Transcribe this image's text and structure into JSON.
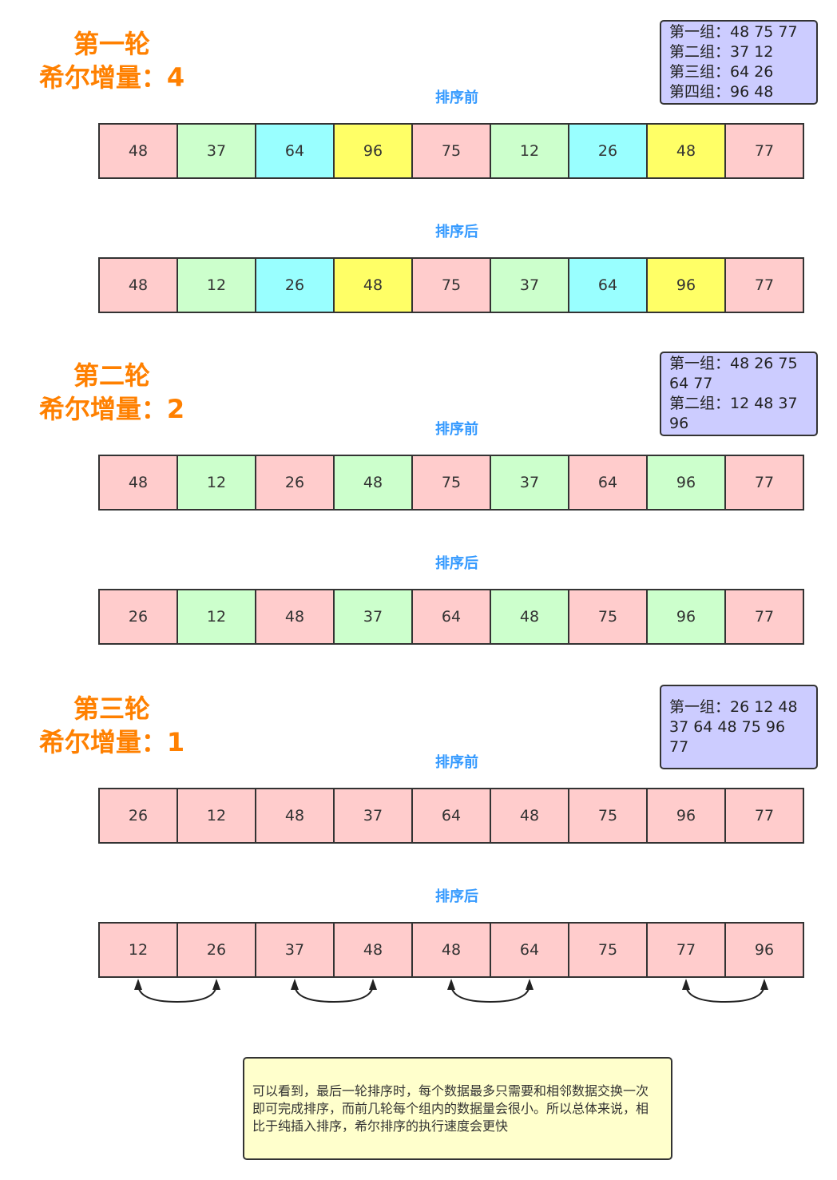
{
  "rounds": [
    {
      "title": "第一轮",
      "increment": "希尔增量：4",
      "groups": [
        "第一组：48 75 77",
        "第二组：37 12",
        "第三组：64 26",
        "第四组：96 48"
      ],
      "before_label": "排序前",
      "before": [
        48,
        37,
        64,
        96,
        75,
        12,
        26,
        48,
        77
      ],
      "after_label": "排序后",
      "after": [
        48,
        12,
        26,
        48,
        75,
        37,
        64,
        96,
        77
      ],
      "palette": [
        "#ffcccc",
        "#ccffcc",
        "#99ffff",
        "#ffff66"
      ]
    },
    {
      "title": "第二轮",
      "increment": "希尔增量：2",
      "groups": [
        "第一组：48 26 75 64 77",
        "第二组：12 48 37 96"
      ],
      "before_label": "排序前",
      "before": [
        48,
        12,
        26,
        48,
        75,
        37,
        64,
        96,
        77
      ],
      "after_label": "排序后",
      "after": [
        26,
        12,
        48,
        37,
        64,
        48,
        75,
        96,
        77
      ],
      "palette": [
        "#ffcccc",
        "#ccffcc"
      ]
    },
    {
      "title": "第三轮",
      "increment": "希尔增量：1",
      "groups": [
        "第一组：26 12 48 37 64 48 75 96 77"
      ],
      "before_label": "排序前",
      "before": [
        26,
        12,
        48,
        37,
        64,
        48,
        75,
        96,
        77
      ],
      "after_label": "排序后",
      "after": [
        12,
        26,
        37,
        48,
        48,
        64,
        75,
        77,
        96
      ],
      "palette": [
        "#ffcccc"
      ]
    }
  ],
  "note": "可以看到，最后一轮排序时，每个数据最多只需要和相邻数据交换一次即可完成排序，而前几轮每个组内的数据量会很小。所以总体来说，相比于纯插入排序，希尔排序的执行速度会更快"
}
